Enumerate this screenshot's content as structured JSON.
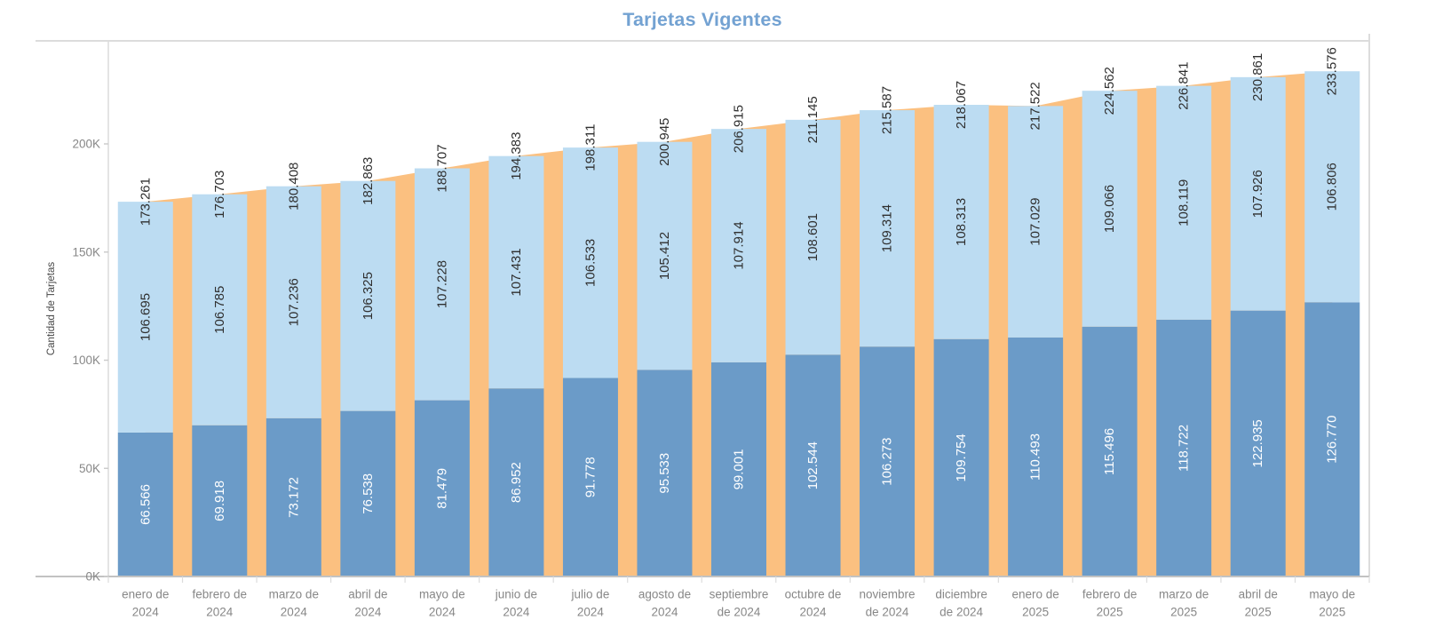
{
  "chart_data": {
    "type": "bar",
    "variant": "stacked-bars-with-total-area-background",
    "title": "Tarjetas Vigentes",
    "ylabel": "Cantidad de Tarjetas",
    "xlabel": "",
    "ylim": [
      0,
      247000
    ],
    "grid": false,
    "legend": "none",
    "number_format": "thousands-dot",
    "y_ticks": {
      "values": [
        0,
        50000,
        100000,
        150000,
        200000
      ],
      "labels": [
        "0K",
        "50K",
        "100K",
        "150K",
        "200K"
      ]
    },
    "categories": [
      [
        "enero de",
        "2024"
      ],
      [
        "febrero de",
        "2024"
      ],
      [
        "marzo de",
        "2024"
      ],
      [
        "abril de",
        "2024"
      ],
      [
        "mayo de",
        "2024"
      ],
      [
        "junio de",
        "2024"
      ],
      [
        "julio de",
        "2024"
      ],
      [
        "agosto de",
        "2024"
      ],
      [
        "septiembre",
        "de 2024"
      ],
      [
        "octubre de",
        "2024"
      ],
      [
        "noviembre",
        "de 2024"
      ],
      [
        "diciembre",
        "de 2024"
      ],
      [
        "enero de",
        "2025"
      ],
      [
        "febrero de",
        "2025"
      ],
      [
        "marzo de",
        "2025"
      ],
      [
        "abril de",
        "2025"
      ],
      [
        "mayo de",
        "2025"
      ]
    ],
    "series": [
      {
        "name": "segmento-inferior",
        "role": "stacked-bottom",
        "color": "#6b9bc8",
        "label_color": "#ffffff",
        "values": [
          66566,
          69918,
          73172,
          76538,
          81479,
          86952,
          91778,
          95533,
          99001,
          102544,
          106273,
          109754,
          110493,
          115496,
          118722,
          122935,
          126770
        ]
      },
      {
        "name": "segmento-superior",
        "role": "stacked-top",
        "color": "#bcdcf2",
        "label_color": "#2f2f2f",
        "values": [
          106695,
          106785,
          107236,
          106325,
          107228,
          107431,
          106533,
          105412,
          107914,
          108601,
          109314,
          108313,
          107029,
          109066,
          108119,
          107926,
          106806
        ]
      }
    ],
    "total": {
      "name": "total-tarjetas",
      "role": "area-behind-bars",
      "color": "#fbc080",
      "label_color": "#2f2f2f",
      "values": [
        173261,
        176703,
        180408,
        182863,
        188707,
        194383,
        198311,
        200945,
        206915,
        211145,
        215587,
        218067,
        217522,
        224562,
        226841,
        230861,
        233576
      ]
    }
  },
  "style": {
    "title_color": "#73a2d2",
    "axis_text_color": "#878787",
    "axis_title_color": "#454545",
    "border_color": "#dcdcdc",
    "axis_line_color": "#c2c2c2",
    "tick_color": "#cccccc"
  }
}
